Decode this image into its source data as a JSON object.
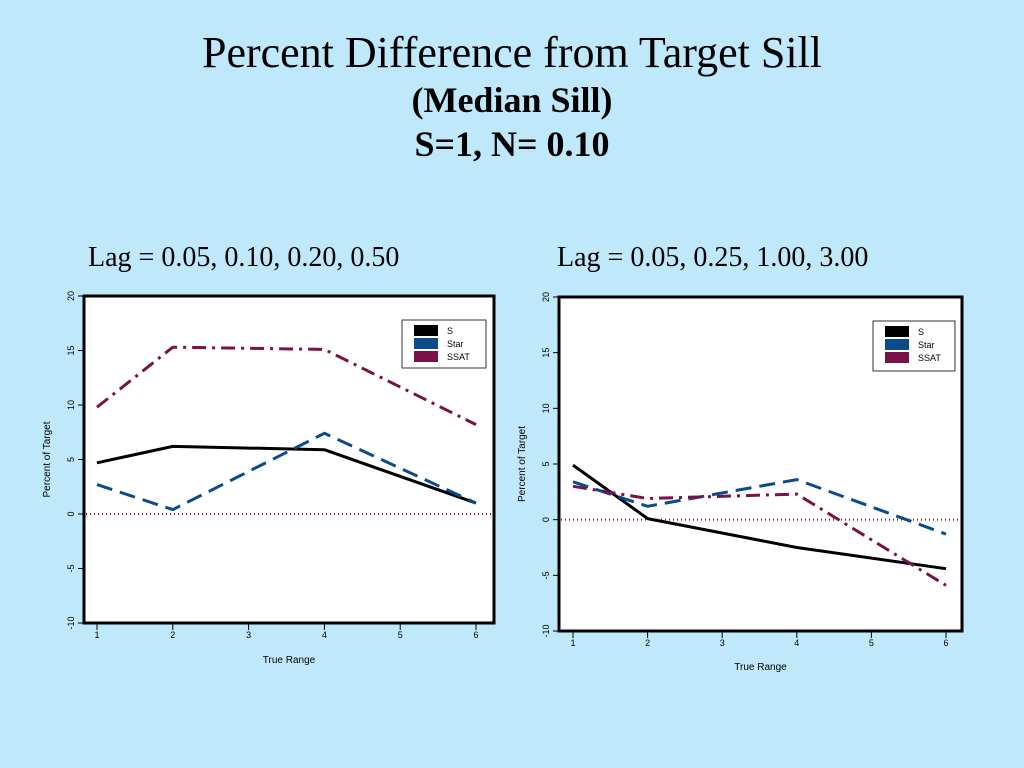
{
  "slide": {
    "title": "Percent Difference from Target Sill",
    "subtitle": "(Median Sill)",
    "params": "S=1, N= 0.10"
  },
  "colors": {
    "background": "#c0e8fb",
    "S": "#000000",
    "Star": "#0a4b8a",
    "SSAT": "#7a1248",
    "reference_line": "#8b1a1a"
  },
  "chart_data": [
    {
      "type": "line",
      "heading": "Lag = 0.05, 0.10, 0.20, 0.50",
      "xlabel": "True Range",
      "ylabel": "Percent of Target",
      "x": [
        1,
        2,
        4,
        6
      ],
      "xticks": [
        1,
        2,
        3,
        4,
        5,
        6
      ],
      "yticks": [
        20,
        15,
        10,
        5,
        0,
        -5,
        -10
      ],
      "ylim": [
        -10,
        20
      ],
      "xlim": [
        1,
        6
      ],
      "reference_line_y": 0,
      "legend_position": "top-right",
      "series": [
        {
          "name": "S",
          "style": "solid",
          "values": [
            4.7,
            6.2,
            5.9,
            1.0
          ]
        },
        {
          "name": "Star",
          "style": "dash",
          "values": [
            2.7,
            0.4,
            7.4,
            1.0
          ]
        },
        {
          "name": "SSAT",
          "style": "dashdot",
          "values": [
            9.8,
            15.3,
            15.1,
            8.2
          ]
        }
      ]
    },
    {
      "type": "line",
      "heading": "Lag = 0.05, 0.25, 1.00, 3.00",
      "xlabel": "True Range",
      "ylabel": "Percent of Target",
      "x": [
        1,
        2,
        4,
        6
      ],
      "xticks": [
        1,
        2,
        3,
        4,
        5,
        6
      ],
      "yticks": [
        20,
        15,
        10,
        5,
        0,
        -5,
        -10
      ],
      "ylim": [
        -10,
        20
      ],
      "xlim": [
        1,
        6
      ],
      "reference_line_y": 0,
      "legend_position": "top-right",
      "series": [
        {
          "name": "S",
          "style": "solid",
          "values": [
            4.9,
            0.1,
            -2.5,
            -4.4
          ]
        },
        {
          "name": "Star",
          "style": "dash",
          "values": [
            3.4,
            1.2,
            3.6,
            -1.3
          ]
        },
        {
          "name": "SSAT",
          "style": "dashdot",
          "values": [
            3.0,
            1.9,
            2.3,
            -5.9
          ]
        }
      ]
    }
  ]
}
